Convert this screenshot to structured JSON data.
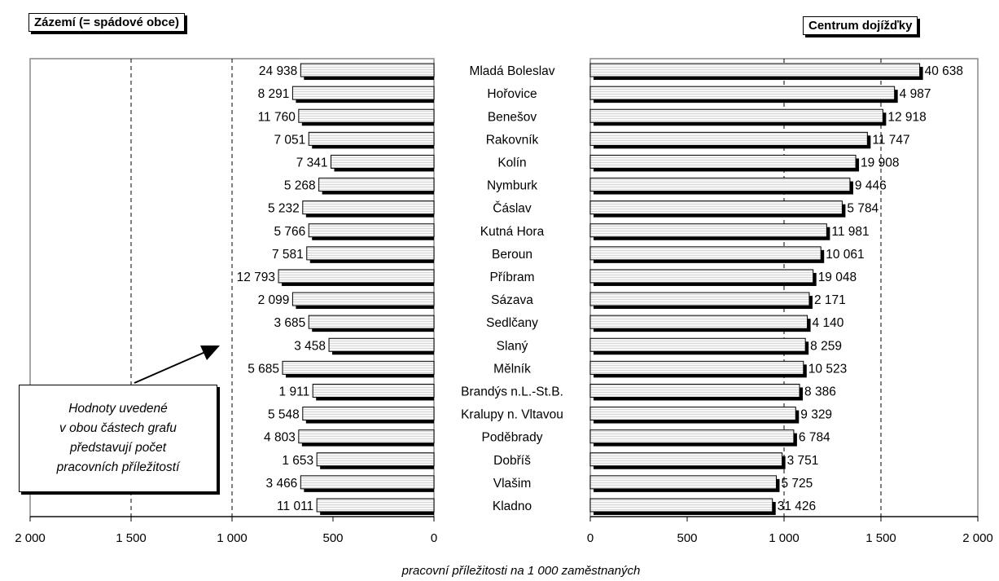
{
  "titles": {
    "left": "Zázemí (= spádové obce)",
    "right": "Centrum dojížďky"
  },
  "note": {
    "lines": [
      "Hodnoty uvedené",
      "v obou částech grafu",
      "představují počet",
      "pracovních příležitostí"
    ]
  },
  "chart_data": {
    "type": "bar",
    "xlabel": "pracovní příležitosti na 1 000 zaměstnaných",
    "categories": [
      "Mladá Boleslav",
      "Hořovice",
      "Benešov",
      "Rakovník",
      "Kolín",
      "Nymburk",
      "Čáslav",
      "Kutná Hora",
      "Beroun",
      "Příbram",
      "Sázava",
      "Sedlčany",
      "Slaný",
      "Mělník",
      "Brandýs n.L.-St.B.",
      "Kralupy n. Vltavou",
      "Poděbrady",
      "Dobříš",
      "Vlašim",
      "Kladno"
    ],
    "left_panel": {
      "title": "Zázemí (= spádové obce)",
      "xlim": [
        2000,
        0
      ],
      "ticks": [
        "2 000",
        "1 500",
        "1 000",
        "500",
        "0"
      ],
      "tick_values": [
        2000,
        1500,
        1000,
        500,
        0
      ],
      "values": [
        660,
        700,
        670,
        620,
        510,
        570,
        650,
        620,
        630,
        770,
        700,
        620,
        520,
        750,
        600,
        650,
        670,
        580,
        660,
        580
      ],
      "labels": [
        "24 938",
        "8 291",
        "11 760",
        "7 051",
        "7 341",
        "5 268",
        "5 232",
        "5 766",
        "7 581",
        "12 793",
        "2 099",
        "3 685",
        "3 458",
        "5 685",
        "1 911",
        "5 548",
        "4 803",
        "1 653",
        "3 466",
        "11 011"
      ]
    },
    "right_panel": {
      "title": "Centrum dojížďky",
      "xlim": [
        0,
        2000
      ],
      "ticks": [
        "0",
        "500",
        "1 000",
        "1 500",
        "2 000"
      ],
      "tick_values": [
        0,
        500,
        1000,
        1500,
        2000
      ],
      "values": [
        1700,
        1570,
        1510,
        1430,
        1370,
        1340,
        1300,
        1220,
        1190,
        1150,
        1130,
        1120,
        1110,
        1100,
        1080,
        1060,
        1050,
        990,
        960,
        940
      ],
      "labels": [
        "40 638",
        "4 987",
        "12 918",
        "11 747",
        "19 908",
        "9 446",
        "5 784",
        "11 981",
        "10 061",
        "19 048",
        "2 171",
        "4 140",
        "8 259",
        "10 523",
        "8 386",
        "9 329",
        "6 784",
        "3 751",
        "5 725",
        "31 426"
      ]
    },
    "grid": "dashed vertical lines at 1 000 and 1 500",
    "colors": {
      "bar_fill": "#f0f0f0",
      "bar_shadow": "#000000",
      "plot_border": "#888888"
    }
  }
}
